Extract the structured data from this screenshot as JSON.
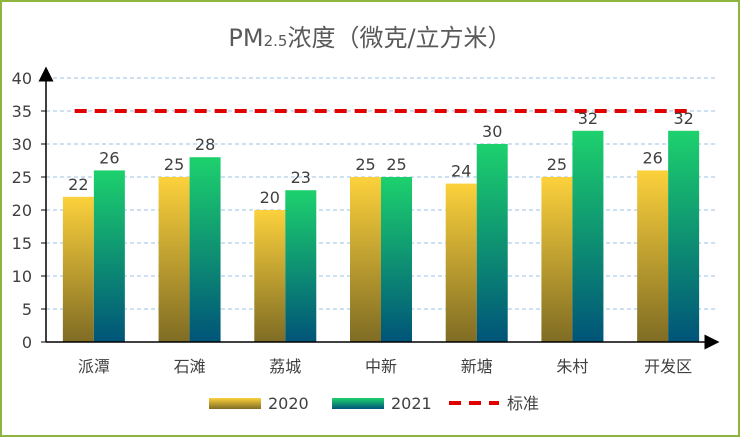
{
  "chart_data": {
    "type": "bar",
    "title_main": "PM",
    "title_sub": "2.5",
    "title_rest": "浓度（微克/立方米）",
    "categories": [
      "派潭",
      "石滩",
      "荔城",
      "中新",
      "新塘",
      "朱村",
      "开发区"
    ],
    "series": [
      {
        "name": "2020",
        "values": [
          22,
          25,
          20,
          25,
          24,
          25,
          26
        ]
      },
      {
        "name": "2021",
        "values": [
          26,
          28,
          23,
          25,
          30,
          32,
          32
        ]
      }
    ],
    "reference_line": {
      "name": "标准",
      "value": 35,
      "color": "#e00000"
    },
    "y_ticks": [
      "0",
      "5",
      "10",
      "15",
      "20",
      "25",
      "30",
      "35",
      "40"
    ],
    "ylim": [
      0,
      40
    ],
    "grid": true,
    "legend_position": "bottom",
    "colors": {
      "s2020_top": "#fcd13c",
      "s2020_bottom": "#7f6c24",
      "s2021_top": "#1dd16d",
      "s2021_bottom": "#005478",
      "grid": "#9dc3e6",
      "frame": "#8db53f"
    }
  }
}
